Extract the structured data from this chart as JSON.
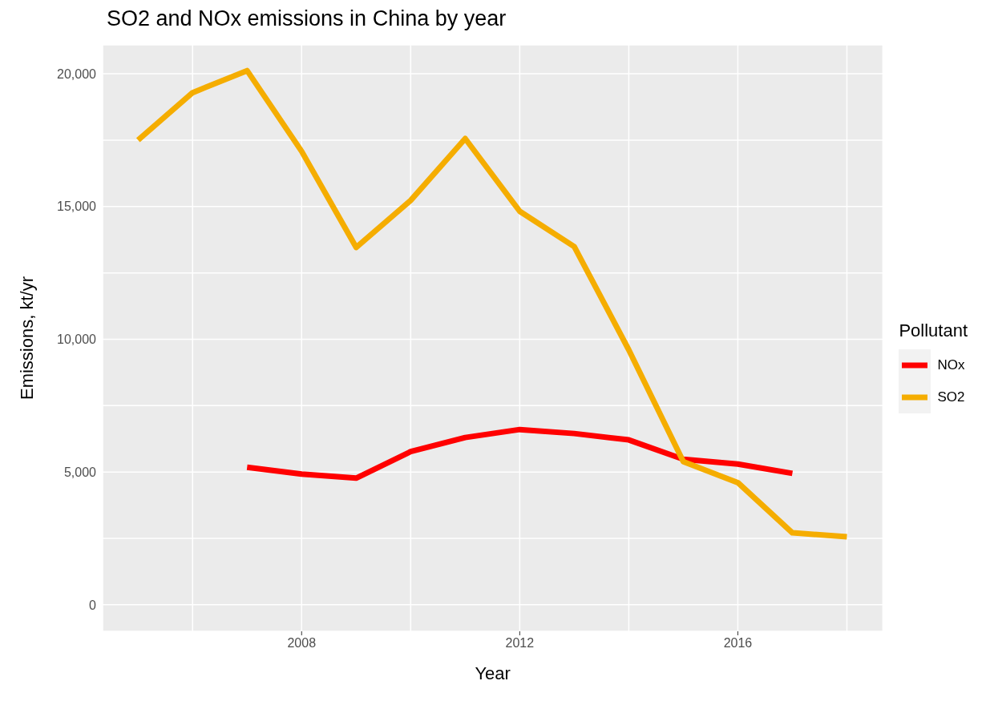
{
  "chart_data": {
    "type": "line",
    "title": "SO2 and NOx emissions in China by year",
    "xlabel": "Year",
    "ylabel": "Emissions, kt/yr",
    "legend_title": "Pollutant",
    "x": [
      2005,
      2006,
      2007,
      2008,
      2009,
      2010,
      2011,
      2012,
      2013,
      2014,
      2015,
      2016,
      2017,
      2018
    ],
    "series": [
      {
        "name": "NOx",
        "color": "#ff0000",
        "values": [
          null,
          null,
          5180,
          4920,
          4770,
          5770,
          6300,
          6600,
          6450,
          6210,
          5480,
          5300,
          4950,
          null
        ]
      },
      {
        "name": "SO2",
        "color": "#f5ad00",
        "values": [
          17500,
          19290,
          20120,
          17080,
          13460,
          15230,
          17560,
          14820,
          13490,
          9600,
          5390,
          4600,
          2710,
          2560
        ]
      }
    ],
    "xlim": [
      2004.35,
      2018.66
    ],
    "xticks": [
      {
        "value": 2006,
        "label": null
      },
      2008,
      {
        "value": 2010,
        "label": null
      },
      2012,
      {
        "value": 2014,
        "label": null
      },
      2016,
      {
        "value": 2018,
        "label": null
      }
    ],
    "ylim": [
      -1000,
      21090
    ],
    "yticks": [
      0,
      {
        "value": 2500,
        "label": null
      },
      {
        "value": 5000,
        "label": "5,000"
      },
      {
        "value": 7500,
        "label": null
      },
      {
        "value": 10000,
        "label": "10,000"
      },
      {
        "value": 12500,
        "label": null
      },
      {
        "value": 15000,
        "label": "15,000"
      },
      {
        "value": 17500,
        "label": null
      },
      {
        "value": 20000,
        "label": "20,000"
      }
    ],
    "grid": true,
    "legend": "right",
    "marker": "none",
    "line_style": "solid"
  }
}
